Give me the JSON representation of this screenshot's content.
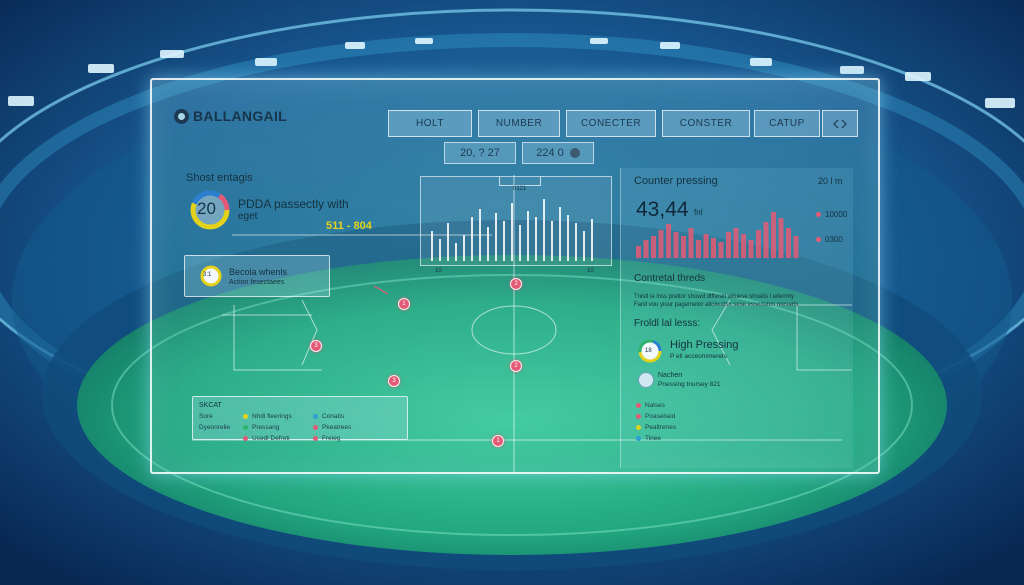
{
  "app": {
    "title": "BALLANGAIL"
  },
  "nav": [
    {
      "label": "HOLT"
    },
    {
      "label": "NUMBER"
    },
    {
      "label": "CONECTER"
    },
    {
      "label": "CONSTER"
    },
    {
      "label": "CATUP"
    }
  ],
  "pills": [
    {
      "label": "20, ? 27"
    },
    {
      "label": "224 0"
    }
  ],
  "left_panel": {
    "heading": "Shost entagis",
    "ring_value": "20",
    "ring_text_1": "PDDA passectly with",
    "ring_text_2": "eget",
    "score": "511 - 804",
    "card_value": "3:1",
    "card_title": "Becola whenls",
    "card_sub": "Action  fesectaees",
    "stats": {
      "title": "SKCAT",
      "rows": [
        {
          "label": "Sore",
          "items": [
            "Nhdl fleerings",
            "Conatis"
          ]
        },
        {
          "label": "Dyeonrelie",
          "items": [
            "Pressang",
            "Pkeatrees"
          ]
        },
        {
          "label": "",
          "items": [
            "Ucedl Defreti",
            "Freieg"
          ]
        }
      ]
    }
  },
  "right_panel": {
    "heading": "Counter pressing",
    "corner": "20 l m",
    "big_value": "43,44",
    "big_unit": "fnl",
    "label_a": "10000",
    "label_b": "0300",
    "subheading": "Contretal threds",
    "desc_1": "Tnistl ie lnss prettor showd dlfferall wiluese shoalis l iefermty",
    "desc_2": "Fanll vou yiour pagemetor altoiwatsn sese  essedatos reesarts",
    "section": "Froldl lal lesss:",
    "ring_label": "18",
    "ring_title": "High Pressing",
    "ring_sub": "P ell acceommerets",
    "item_title": "Nachen",
    "item_sub": "Pnessing tnursey 821",
    "legend": [
      "Nalses",
      "Poaselsed",
      "Pealtrenes",
      "Tinee"
    ]
  },
  "center": {
    "top_label": "0121",
    "axis_left": "10",
    "axis_right": "10"
  },
  "colors": {
    "accent_red": "#e45a76",
    "accent_yellow": "#e4d21a",
    "accent_blue": "#2a7fd0",
    "accent_green": "#2fb36a"
  }
}
